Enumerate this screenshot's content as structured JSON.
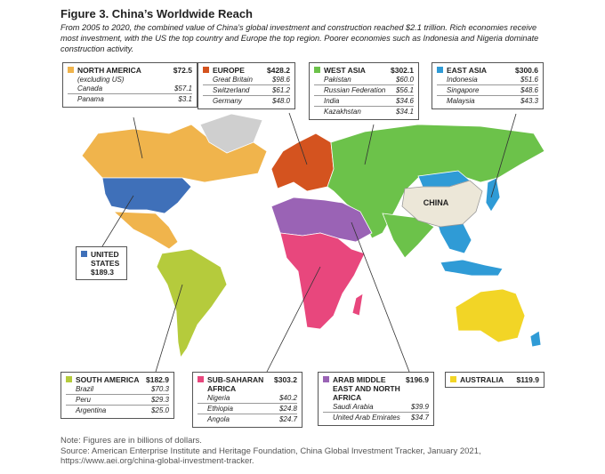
{
  "title": "Figure 3. China’s Worldwide Reach",
  "subtitle": "From 2005 to 2020, the combined value of China’s global investment and construction reached $2.1 trillion. Rich economies receive most investment, with the US the top country and Europe the top region. Poorer economies such as Indonesia and Nigeria dominate construction activity.",
  "map_label": "CHINA",
  "regions": [
    {
      "name": "NORTH AMERICA",
      "total": "$72.5",
      "note": "(excluding US)",
      "color": "#f0b44c",
      "countries": [
        {
          "name": "Canada",
          "value": "$57.1"
        },
        {
          "name": "Panama",
          "value": "$3.1"
        }
      ]
    },
    {
      "name": "EUROPE",
      "total": "$428.2",
      "color": "#d4531f",
      "countries": [
        {
          "name": "Great Britain",
          "value": "$98.6"
        },
        {
          "name": "Switzerland",
          "value": "$61.2"
        },
        {
          "name": "Germany",
          "value": "$48.0"
        }
      ]
    },
    {
      "name": "WEST ASIA",
      "total": "$302.1",
      "color": "#6cc24a",
      "countries": [
        {
          "name": "Pakistan",
          "value": "$60.0"
        },
        {
          "name": "Russian Federation",
          "value": "$56.1"
        },
        {
          "name": "India",
          "value": "$34.6"
        },
        {
          "name": "Kazakhstan",
          "value": "$34.1"
        }
      ]
    },
    {
      "name": "EAST ASIA",
      "total": "$300.6",
      "color": "#2f9bd6",
      "countries": [
        {
          "name": "Indonesia",
          "value": "$51.6"
        },
        {
          "name": "Singapore",
          "value": "$48.6"
        },
        {
          "name": "Malaysia",
          "value": "$43.3"
        }
      ]
    },
    {
      "name": "UNITED STATES",
      "total": "$189.3",
      "color": "#3f70b9",
      "countries": []
    },
    {
      "name": "SOUTH AMERICA",
      "total": "$182.9",
      "color": "#b5cb3c",
      "countries": [
        {
          "name": "Brazil",
          "value": "$70.3"
        },
        {
          "name": "Peru",
          "value": "$29.3"
        },
        {
          "name": "Argentina",
          "value": "$25.0"
        }
      ]
    },
    {
      "name": "SUB-SAHARAN AFRICA",
      "total": "$303.2",
      "color": "#e8477d",
      "countries": [
        {
          "name": "Nigeria",
          "value": "$40.2"
        },
        {
          "name": "Ethiopia",
          "value": "$24.8"
        },
        {
          "name": "Angola",
          "value": "$24.7"
        }
      ]
    },
    {
      "name": "ARAB MIDDLE EAST AND NORTH AFRICA",
      "total": "$196.9",
      "color": "#9a63b5",
      "countries": [
        {
          "name": "Saudi Arabia",
          "value": "$39.9"
        },
        {
          "name": "United Arab Emirates",
          "value": "$34.7"
        }
      ]
    },
    {
      "name": "AUSTRALIA",
      "total": "$119.9",
      "color": "#f2d526",
      "countries": []
    }
  ],
  "note": "Note: Figures are in billions of dollars.",
  "source": "Source: American Enterprise Institute and Heritage Foundation, China Global Investment Tracker, January 2021, https://www.aei.org/china-global-investment-tracker."
}
